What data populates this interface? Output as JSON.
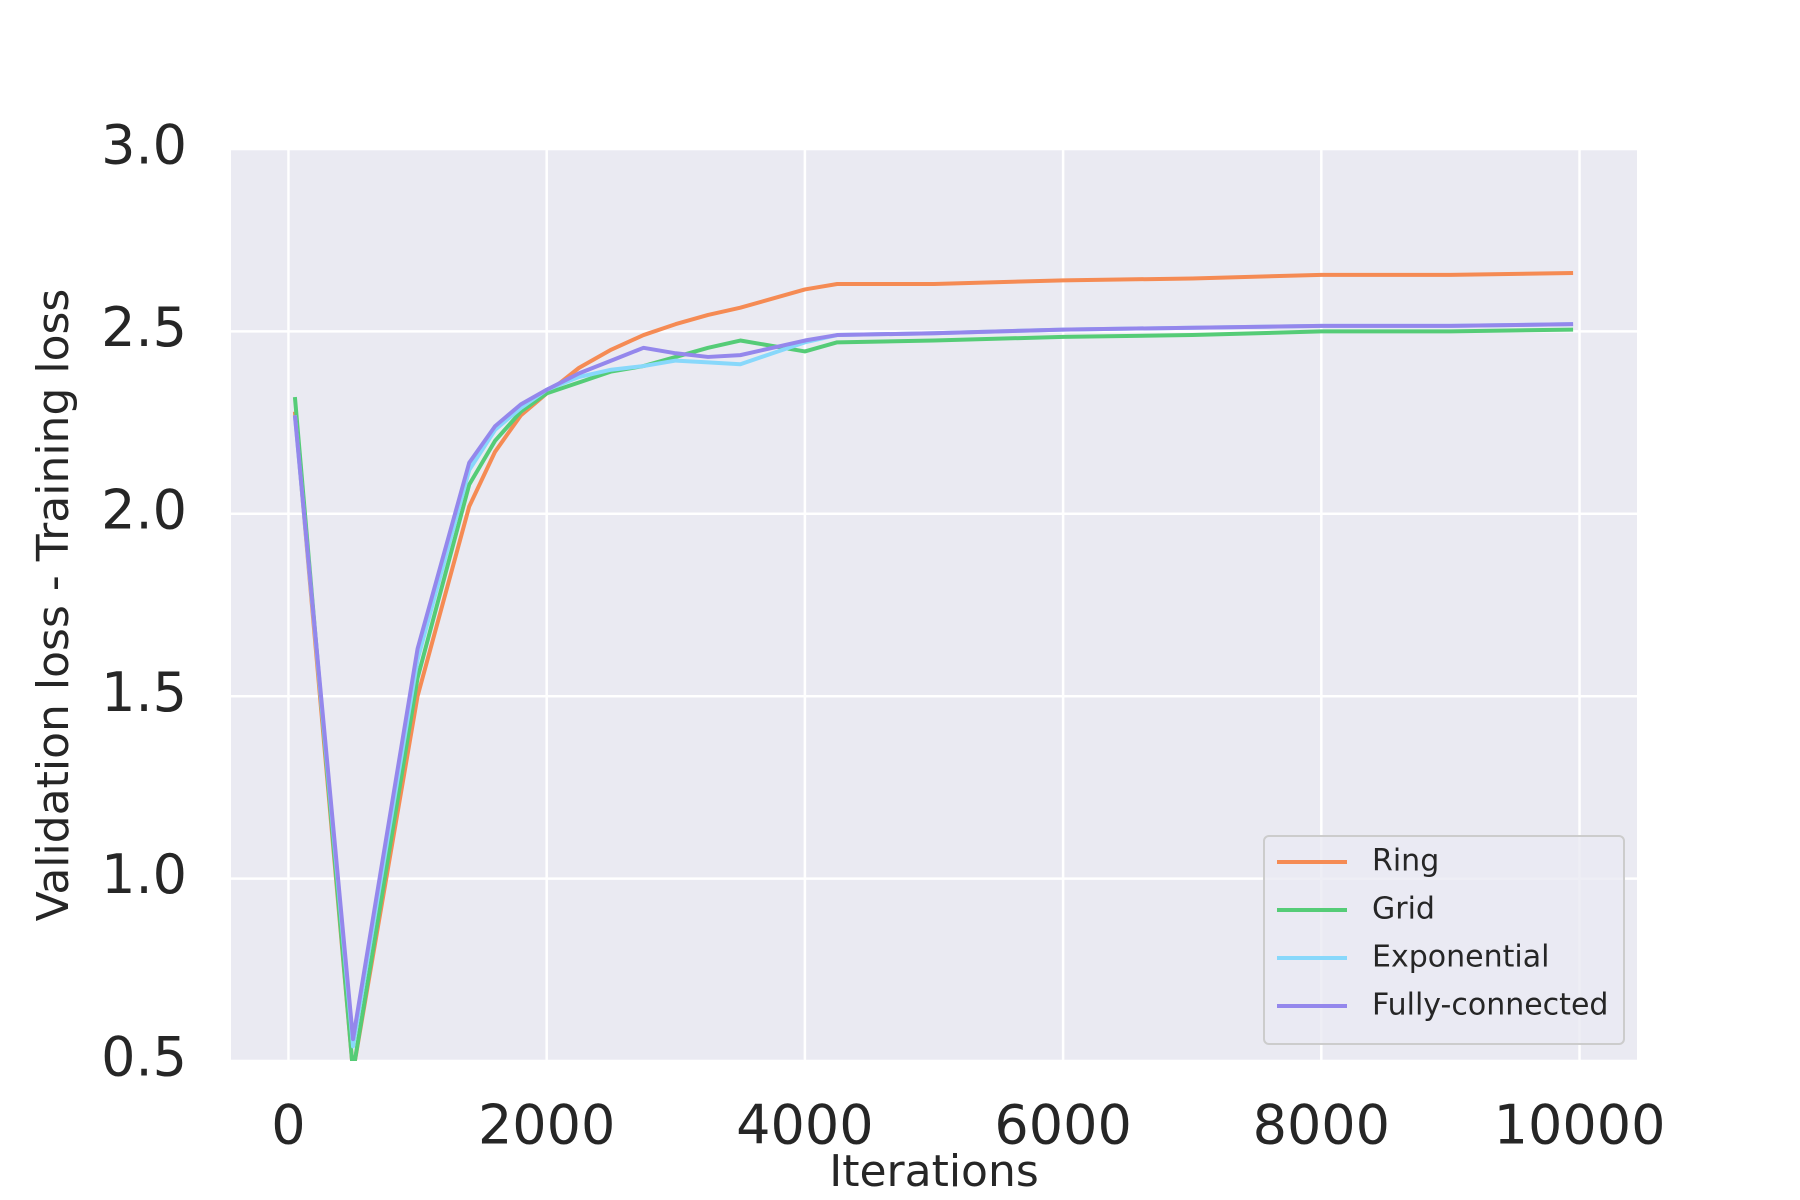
{
  "chart_data": {
    "type": "line",
    "x_label": "Iterations",
    "y_label": "Validation loss - Training loss",
    "x": [
      50,
      500,
      1000,
      1400,
      1600,
      1800,
      2000,
      2250,
      2500,
      2750,
      3000,
      3250,
      3500,
      3750,
      4000,
      4250,
      5000,
      6000,
      7000,
      8000,
      9000,
      9950
    ],
    "series": [
      {
        "name": "Ring",
        "color": "#f58b54",
        "values": [
          2.28,
          0.47,
          1.5,
          2.02,
          2.17,
          2.27,
          2.33,
          2.4,
          2.45,
          2.49,
          2.52,
          2.545,
          2.565,
          2.59,
          2.615,
          2.63,
          2.63,
          2.64,
          2.645,
          2.655,
          2.655,
          2.66
        ]
      },
      {
        "name": "Grid",
        "color": "#55cc77",
        "values": [
          2.32,
          0.47,
          1.55,
          2.08,
          2.2,
          2.28,
          2.33,
          2.36,
          2.39,
          2.405,
          2.43,
          2.455,
          2.475,
          2.46,
          2.445,
          2.47,
          2.475,
          2.485,
          2.49,
          2.5,
          2.5,
          2.505
        ]
      },
      {
        "name": "Exponential",
        "color": "#88d8fb",
        "values": [
          2.27,
          0.54,
          1.6,
          2.12,
          2.23,
          2.29,
          2.34,
          2.375,
          2.395,
          2.405,
          2.42,
          2.415,
          2.41,
          2.44,
          2.47,
          2.49,
          2.495,
          2.505,
          2.51,
          2.515,
          2.515,
          2.52
        ]
      },
      {
        "name": "Fully-connected",
        "color": "#9487ec",
        "values": [
          2.27,
          0.56,
          1.63,
          2.14,
          2.24,
          2.3,
          2.34,
          2.385,
          2.42,
          2.455,
          2.44,
          2.43,
          2.435,
          2.455,
          2.475,
          2.49,
          2.495,
          2.505,
          2.51,
          2.515,
          2.515,
          2.52
        ]
      }
    ],
    "xlim": [
      -445,
      10445
    ],
    "ylim": [
      0.5,
      3.0
    ],
    "xticks": [
      0,
      2000,
      4000,
      6000,
      8000,
      10000
    ],
    "yticks": [
      0.5,
      {
        "value": 1.0,
        "label": "1.0"
      },
      1.5,
      {
        "value": 2.0,
        "label": "2.0"
      },
      2.5,
      {
        "value": 3.0,
        "label": "3.0"
      }
    ],
    "grid": true,
    "legend": "lower right"
  }
}
